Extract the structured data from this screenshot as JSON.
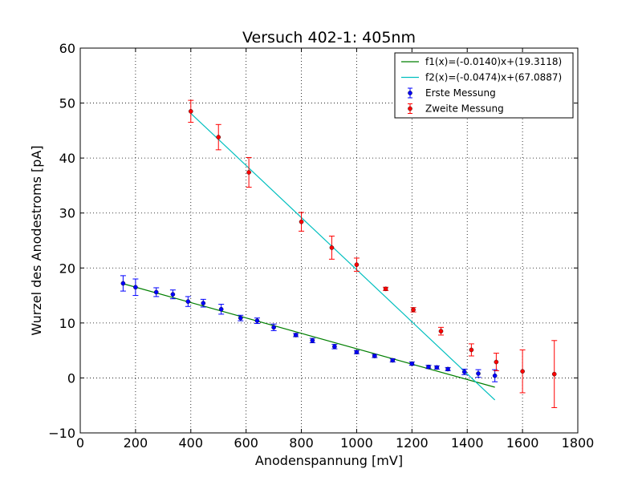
{
  "chart_data": {
    "type": "scatter",
    "title": "Versuch 402-1: 405nm",
    "xlabel": "Anodenspannung [mV]",
    "ylabel": "Wurzel des Anodestroms [pA]",
    "xlim": [
      0,
      1800
    ],
    "ylim": [
      -10,
      60
    ],
    "xticks": [
      "0",
      "200",
      "400",
      "600",
      "800",
      "1000",
      "1200",
      "1400",
      "1600",
      "1800"
    ],
    "yticks": [
      "−10",
      "0",
      "10",
      "20",
      "30",
      "40",
      "50",
      "60"
    ],
    "grid": true,
    "legend": "top-right",
    "series": [
      {
        "name": "Erste Messung",
        "kind": "errorbar",
        "color": "#0000ff",
        "x": [
          155,
          200,
          275,
          335,
          390,
          445,
          510,
          580,
          640,
          700,
          780,
          840,
          920,
          1000,
          1065,
          1130,
          1200,
          1260,
          1290,
          1330,
          1390,
          1440,
          1500
        ],
        "y": [
          17.2,
          16.5,
          15.6,
          15.2,
          13.9,
          13.6,
          12.5,
          10.9,
          10.4,
          9.2,
          7.8,
          6.8,
          5.7,
          4.7,
          4.0,
          3.2,
          2.6,
          2.0,
          1.9,
          1.6,
          1.1,
          0.8,
          0.4
        ],
        "err": [
          1.4,
          1.5,
          0.8,
          0.8,
          0.9,
          0.7,
          0.9,
          0.5,
          0.5,
          0.6,
          0.3,
          0.4,
          0.4,
          0.3,
          0.3,
          0.3,
          0.3,
          0.3,
          0.3,
          0.3,
          0.5,
          0.7,
          1.1
        ]
      },
      {
        "name": "Zweite Messung",
        "kind": "errorbar",
        "color": "#ff0000",
        "x": [
          400,
          500,
          610,
          800,
          910,
          1000,
          1105,
          1205,
          1305,
          1415,
          1505,
          1600,
          1715
        ],
        "y": [
          48.5,
          43.8,
          37.4,
          28.4,
          23.7,
          20.6,
          16.2,
          12.4,
          8.5,
          5.1,
          2.9,
          1.2,
          0.7
        ],
        "err": [
          2.0,
          2.3,
          2.7,
          1.7,
          2.1,
          1.2,
          0.3,
          0.4,
          0.7,
          1.1,
          1.6,
          3.9,
          6.1
        ]
      },
      {
        "name": "f1(x)=(-0.0140)x+(19.3118)",
        "kind": "line",
        "color": "#007f00",
        "slope": -0.014,
        "intercept": 19.3118,
        "x_range": [
          155,
          1500
        ]
      },
      {
        "name": "f2(x)=(-0.0474)x+(67.0887)",
        "kind": "line",
        "color": "#00bfbf",
        "slope": -0.0474,
        "intercept": 67.0887,
        "x_range": [
          400,
          1500
        ]
      }
    ]
  }
}
